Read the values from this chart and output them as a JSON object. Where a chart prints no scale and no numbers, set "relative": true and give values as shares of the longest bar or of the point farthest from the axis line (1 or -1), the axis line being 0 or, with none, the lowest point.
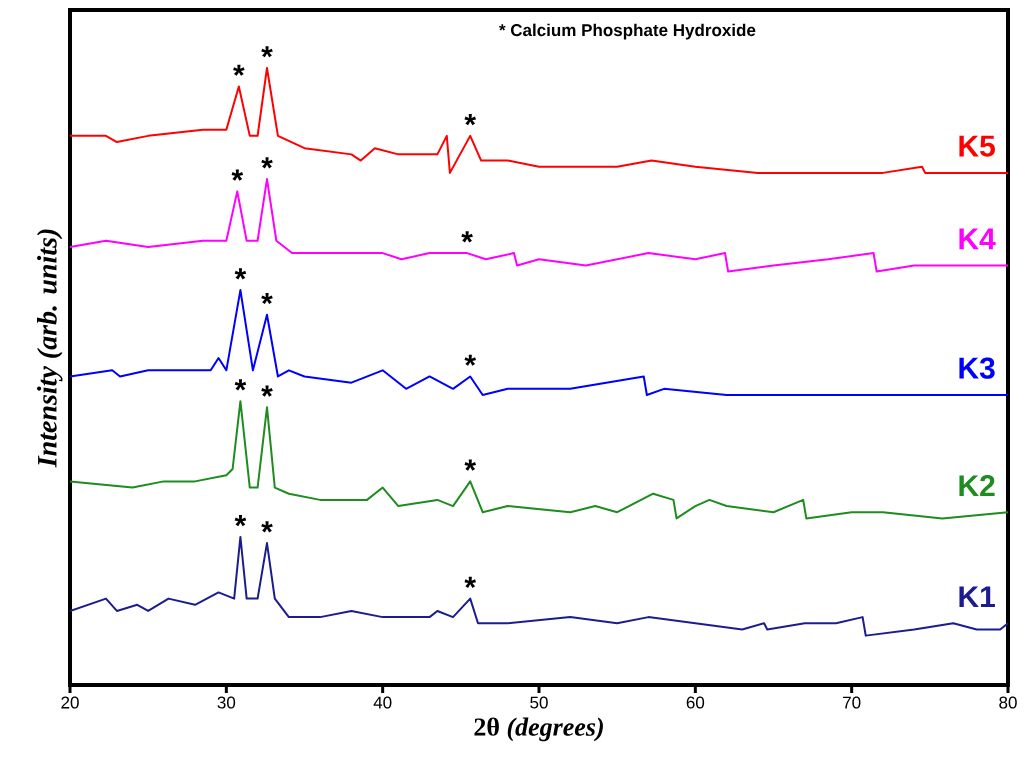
{
  "chart_data": {
    "type": "line",
    "relative": true,
    "xlabel": "2θ *(degrees)*",
    "ylabel": "Intensity (arb. units)",
    "xlim": [
      20,
      80
    ],
    "xticks": [
      20,
      30,
      40,
      50,
      60,
      70,
      80
    ],
    "grid": false,
    "legend": false,
    "marker": "none",
    "line_style": "solid",
    "series": [
      {
        "name": "K1",
        "color": "#1c1c8f",
        "x": [
          20,
          22.3,
          23,
          24.3,
          25,
          26.3,
          28,
          29.5,
          30.5,
          30.9,
          31.3,
          32,
          32.6,
          33.1,
          34,
          36,
          38,
          40,
          43,
          43.5,
          44.5,
          45.6,
          46.1,
          48,
          52,
          55,
          57,
          60,
          63,
          64.4,
          64.6,
          67,
          69,
          70.7,
          70.9,
          74,
          76.5,
          78,
          79.5,
          80
        ],
        "values": [
          0.12,
          0.14,
          0.12,
          0.13,
          0.12,
          0.14,
          0.13,
          0.15,
          0.14,
          0.24,
          0.14,
          0.14,
          0.23,
          0.14,
          0.11,
          0.11,
          0.12,
          0.11,
          0.11,
          0.12,
          0.11,
          0.14,
          0.1,
          0.1,
          0.11,
          0.1,
          0.11,
          0.1,
          0.09,
          0.1,
          0.09,
          0.1,
          0.1,
          0.11,
          0.08,
          0.09,
          0.1,
          0.09,
          0.09,
          0.1
        ]
      },
      {
        "name": "K2",
        "color": "#1e8c1e",
        "x": [
          20,
          24,
          26,
          28,
          30,
          30.4,
          30.9,
          31.5,
          32,
          32.6,
          33.1,
          34,
          36,
          38,
          39,
          40,
          41,
          43.5,
          44.5,
          45.6,
          46.4,
          48,
          52,
          53.6,
          55,
          57.3,
          58.6,
          58.8,
          60,
          60.9,
          62,
          65,
          66.9,
          67.1,
          70,
          72,
          75.8,
          80
        ],
        "values": [
          0.33,
          0.32,
          0.33,
          0.33,
          0.34,
          0.35,
          0.46,
          0.32,
          0.32,
          0.45,
          0.32,
          0.31,
          0.3,
          0.3,
          0.3,
          0.32,
          0.29,
          0.3,
          0.29,
          0.33,
          0.28,
          0.29,
          0.28,
          0.29,
          0.28,
          0.31,
          0.3,
          0.27,
          0.29,
          0.3,
          0.29,
          0.28,
          0.3,
          0.27,
          0.28,
          0.28,
          0.27,
          0.28
        ]
      },
      {
        "name": "K3",
        "color": "#0000ff",
        "x": [
          20,
          22.7,
          23.2,
          25,
          27,
          29,
          29.5,
          30,
          30.9,
          31.7,
          32.6,
          33.3,
          34,
          35,
          38,
          40,
          41.5,
          43,
          44.5,
          45.6,
          46.4,
          48,
          52,
          56.7,
          56.9,
          58,
          62,
          66,
          70,
          74,
          77.5,
          80
        ],
        "values": [
          0.5,
          0.51,
          0.5,
          0.51,
          0.51,
          0.51,
          0.53,
          0.51,
          0.64,
          0.51,
          0.6,
          0.5,
          0.51,
          0.5,
          0.49,
          0.51,
          0.48,
          0.5,
          0.48,
          0.5,
          0.47,
          0.48,
          0.48,
          0.5,
          0.47,
          0.48,
          0.47,
          0.47,
          0.47,
          0.47,
          0.47,
          0.47
        ]
      },
      {
        "name": "K4",
        "color": "#ff00ff",
        "x": [
          20,
          22.3,
          25,
          28.5,
          30,
          30.7,
          31.3,
          32,
          32.6,
          33.2,
          34.2,
          35,
          38,
          40,
          41.2,
          43,
          45.4,
          46.6,
          48.4,
          48.6,
          50,
          53,
          57,
          60,
          61.9,
          62.1,
          65,
          68.5,
          71.4,
          71.6,
          74,
          80
        ],
        "values": [
          0.71,
          0.72,
          0.71,
          0.72,
          0.72,
          0.8,
          0.72,
          0.72,
          0.82,
          0.72,
          0.7,
          0.7,
          0.7,
          0.7,
          0.69,
          0.7,
          0.7,
          0.69,
          0.7,
          0.68,
          0.69,
          0.68,
          0.7,
          0.69,
          0.7,
          0.67,
          0.68,
          0.69,
          0.7,
          0.67,
          0.68,
          0.68
        ]
      },
      {
        "name": "K5",
        "color": "#ff0000",
        "x": [
          20,
          22.3,
          23,
          25,
          28.5,
          30,
          30.8,
          31.5,
          32,
          32.6,
          33.3,
          35,
          38,
          38.6,
          39.5,
          41,
          43.5,
          44.1,
          44.3,
          45.6,
          46.3,
          48,
          50,
          55,
          57.2,
          60,
          64,
          70,
          72,
          74.5,
          74.7,
          76,
          80
        ],
        "values": [
          0.89,
          0.89,
          0.88,
          0.89,
          0.9,
          0.9,
          0.97,
          0.89,
          0.89,
          1.0,
          0.89,
          0.87,
          0.86,
          0.85,
          0.87,
          0.86,
          0.86,
          0.89,
          0.83,
          0.89,
          0.85,
          0.85,
          0.84,
          0.84,
          0.85,
          0.84,
          0.83,
          0.83,
          0.83,
          0.84,
          0.83,
          0.83,
          0.83
        ]
      }
    ],
    "annotations": [
      "* Calcium Phosphate Hydroxide",
      {
        "text": "*",
        "x": 30.9,
        "y": 0.24
      },
      {
        "text": "*",
        "x": 32.6,
        "y": 0.23
      },
      {
        "text": "*",
        "x": 45.6,
        "y": 0.14
      },
      {
        "text": "*",
        "x": 30.9,
        "y": 0.46
      },
      {
        "text": "*",
        "x": 32.6,
        "y": 0.45
      },
      {
        "text": "*",
        "x": 45.6,
        "y": 0.33
      },
      {
        "text": "*",
        "x": 30.9,
        "y": 0.64
      },
      {
        "text": "*",
        "x": 32.6,
        "y": 0.6
      },
      {
        "text": "*",
        "x": 45.6,
        "y": 0.5
      },
      {
        "text": "*",
        "x": 30.7,
        "y": 0.8
      },
      {
        "text": "*",
        "x": 32.6,
        "y": 0.82
      },
      {
        "text": "*",
        "x": 45.4,
        "y": 0.7
      },
      {
        "text": "*",
        "x": 30.8,
        "y": 0.97
      },
      {
        "text": "*",
        "x": 32.6,
        "y": 1.0
      },
      {
        "text": "*",
        "x": 45.6,
        "y": 0.89
      }
    ]
  }
}
